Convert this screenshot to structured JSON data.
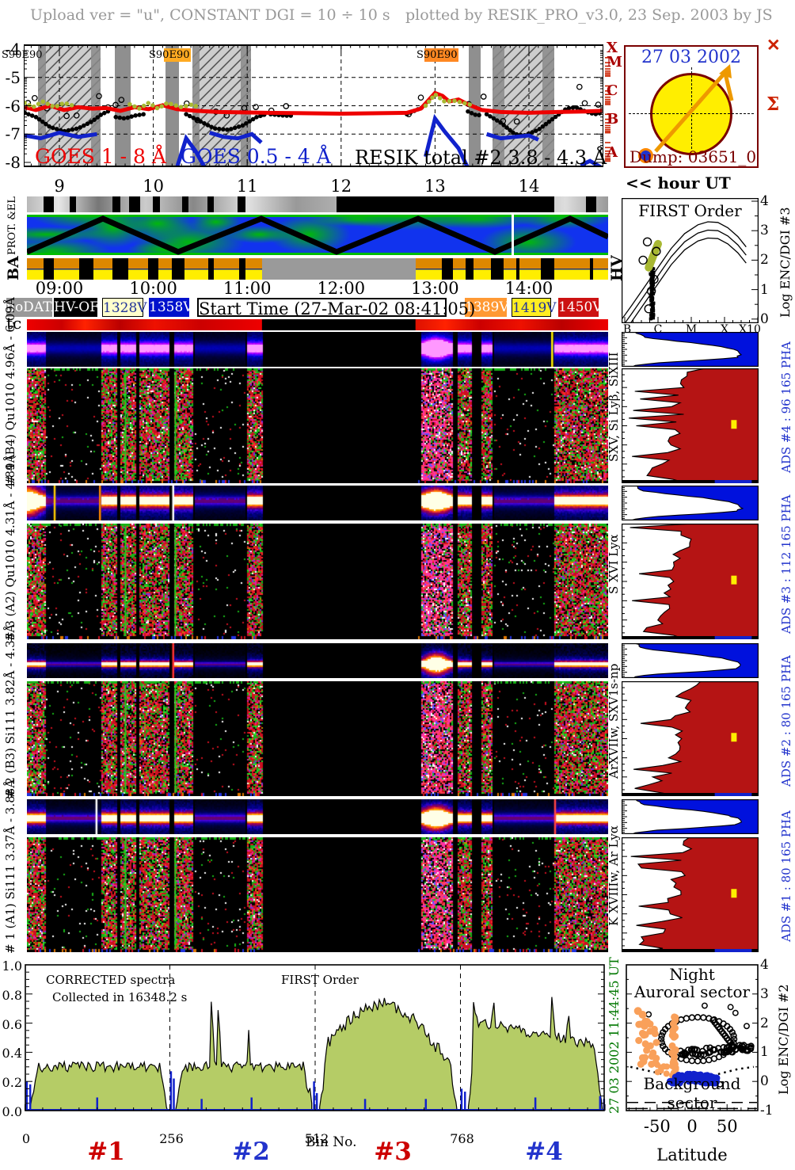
{
  "header": {
    "left": "Upload ver = \"u\", CONSTANT  DGI =  10 ÷  10 s",
    "right": "plotted by RESIK_PRO_v3.0, 23 Sep. 2003 by JS"
  },
  "sun_panel": {
    "date": "27 03 2002",
    "dump": "Dump: 03651_0"
  },
  "hour_note": "<< hour UT",
  "decor": {
    "cross": "✕",
    "sigma": "Σ"
  },
  "goes": {
    "yticks": [
      "-4",
      "-5",
      "-6",
      "-7",
      "-8"
    ],
    "xticks": [
      "9",
      "10",
      "11",
      "12",
      "13",
      "14"
    ],
    "class_letters": [
      "X",
      "M",
      "C",
      "B",
      "A"
    ],
    "s90_labels": [
      "S90E90",
      "S90E90",
      "S90E90"
    ],
    "legend": [
      "GOES 1 - 8 Å",
      "GOES 0.5 - 4 Å",
      "RESIK total #2  3.8 - 4.3 Å"
    ],
    "legend_colors": [
      "#ee0000",
      "#1122cc",
      "#000000"
    ]
  },
  "strips": {
    "prot_label": "PROT. &EL",
    "ba_label": "BA",
    "hv_label": "HV",
    "tc_label": "tc",
    "times": [
      "09:00",
      "10:00",
      "11:00",
      "12:00",
      "13:00",
      "14:00"
    ],
    "volt_legend": [
      {
        "label": "noDATA",
        "bg": "#999999",
        "fg": "#ffffff"
      },
      {
        "label": "HV-OFF",
        "bg": "#000000",
        "fg": "#ffffff"
      },
      {
        "label": "1328V",
        "bg": "#ffffcc",
        "fg": "#223399"
      },
      {
        "label": "1358V",
        "bg": "#0011cc",
        "fg": "#ffffff"
      },
      {
        "label": "1389V",
        "bg": "#ff9933",
        "fg": "#ffffff"
      },
      {
        "label": "1419V",
        "bg": "#ffee22",
        "fg": "#223399"
      },
      {
        "label": "1450V",
        "bg": "#cc1111",
        "fg": "#ffffff"
      }
    ],
    "start_time": "Start Time (27-Mar-02 08:41:05)"
  },
  "panels": [
    {
      "id": "4",
      "left_label": "# 4 (B4) Qu1010 4.96Å - 6.09Å",
      "line_label": "SXV, Si Lyβ, SiXIII",
      "ads_label": "ADS #4 :  96 165 PHA"
    },
    {
      "id": "3",
      "left_label": "# 3 (A2) Qu1010 4.31Å - 4.89Å",
      "line_label": "S XVI Lyα",
      "ads_label": "ADS #3 :  112 165 PHA"
    },
    {
      "id": "2",
      "left_label": "# 2 (B3) Si111  3.82Å - 4.33Å",
      "line_label": "ArXVIIw, SXV1s-np",
      "ads_label": "ADS #2 :  80 165 PHA"
    },
    {
      "id": "1",
      "left_label": "# 1 (A1) Si111  3.37Å - 3.88Å",
      "line_label": "K XVIIIw, Ar Lyα",
      "ads_label": "ADS #1 :  80 165 PHA"
    }
  ],
  "first_order": {
    "title": "FIRST Order",
    "xticks": [
      "B",
      "C",
      "M",
      "X",
      "X10"
    ],
    "yticks": [
      "4",
      "3",
      "2",
      "1",
      "0"
    ],
    "ylabel": "Log ENC/DGI #3"
  },
  "spectra": {
    "title": "CORRECTED spectra",
    "subtitle": "Collected in 16348.2 s",
    "order_note": "FIRST Order",
    "xlabel": "Bin No.",
    "xticks": [
      "0",
      "256",
      "512",
      "768"
    ],
    "yticks": [
      "1.0",
      "0.8",
      "0.6",
      "0.4",
      "0.2",
      "0.0"
    ],
    "segment_labels": [
      "#1",
      "#2",
      "#3",
      "#4"
    ],
    "segment_colors": [
      "#cc0000",
      "#2233cc",
      "#cc0000",
      "#2233cc"
    ],
    "side_date": "27 03 2002      11:44:45 UT"
  },
  "latitude_plot": {
    "label_night": "Night",
    "label_auroral": "Auroral sector",
    "label_background": "Background sector",
    "xlabel": "Latitude",
    "xticks": [
      "-50",
      "0",
      "50"
    ],
    "yticks": [
      "4",
      "3",
      "2",
      "1",
      "0",
      "-1"
    ],
    "ylabel": "Log ENC/DGI #2"
  },
  "chart_data": {
    "goes": {
      "type": "line",
      "xlabel_hours": [
        9,
        10,
        11,
        12,
        13,
        14
      ],
      "ylim": [
        -8,
        -4
      ],
      "night_bands": [
        [
          48,
          127,
          "hatch"
        ],
        [
          145,
          165,
          "solid"
        ],
        [
          209,
          226,
          "solid"
        ],
        [
          243,
          317,
          "hatch"
        ],
        [
          592,
          607,
          "solid"
        ],
        [
          622,
          700,
          "hatch"
        ]
      ],
      "hatch_edges": [
        [
          48,
          58
        ],
        [
          115,
          127
        ],
        [
          243,
          252
        ],
        [
          304,
          317
        ],
        [
          622,
          637
        ],
        [
          685,
          700
        ]
      ],
      "red_series": [
        [
          8.63,
          -6.05
        ],
        [
          8.75,
          -6.15
        ],
        [
          8.9,
          -6.0
        ],
        [
          9.05,
          -6.15
        ],
        [
          9.2,
          -6.05
        ],
        [
          9.35,
          -6.1
        ],
        [
          9.5,
          -6.08
        ],
        [
          9.65,
          -6.18
        ],
        [
          9.8,
          -6.05
        ],
        [
          9.95,
          -6.12
        ],
        [
          10.1,
          -5.98
        ],
        [
          10.25,
          -6.12
        ],
        [
          10.45,
          -6.18
        ],
        [
          10.7,
          -6.22
        ],
        [
          11.2,
          -6.25
        ],
        [
          12.0,
          -6.28
        ],
        [
          12.7,
          -6.25
        ],
        [
          12.85,
          -6.1
        ],
        [
          13.0,
          -5.55
        ],
        [
          13.08,
          -5.65
        ],
        [
          13.15,
          -5.85
        ],
        [
          13.25,
          -5.78
        ],
        [
          13.35,
          -5.95
        ],
        [
          13.5,
          -6.15
        ],
        [
          13.7,
          -6.22
        ],
        [
          14.0,
          -6.25
        ],
        [
          14.3,
          -6.22
        ],
        [
          14.6,
          -6.2
        ],
        [
          14.78,
          -6.18
        ]
      ],
      "olive_series": [
        [
          [
            8.63,
            -5.9
          ],
          [
            8.72,
            -6.05
          ],
          [
            8.82,
            -5.85
          ],
          [
            8.95,
            -6.05
          ],
          [
            9.05,
            -5.9
          ],
          [
            9.15,
            -6.0
          ]
        ],
        [
          [
            9.75,
            -5.95
          ],
          [
            9.85,
            -6.1
          ],
          [
            9.95,
            -5.9
          ],
          [
            10.05,
            -6.1
          ],
          [
            10.15,
            -5.9
          ],
          [
            10.3,
            -6.05
          ],
          [
            10.42,
            -5.95
          ],
          [
            10.5,
            -6.1
          ]
        ],
        [
          [
            12.9,
            -6.0
          ],
          [
            13.0,
            -5.6
          ],
          [
            13.1,
            -5.85
          ],
          [
            13.2,
            -5.82
          ],
          [
            13.3,
            -5.9
          ],
          [
            13.42,
            -6.0
          ]
        ]
      ],
      "blue_series": [
        [
          [
            8.63,
            -7.05
          ],
          [
            8.8,
            -7.15
          ],
          [
            9.0,
            -6.95
          ],
          [
            9.2,
            -7.1
          ],
          [
            9.4,
            -7.0
          ]
        ],
        [
          [
            10.25,
            -8.2
          ],
          [
            10.35,
            -7.15
          ],
          [
            10.45,
            -7.6
          ],
          [
            10.55,
            -8.2
          ]
        ],
        [
          [
            10.6,
            -6.95
          ],
          [
            10.75,
            -7.1
          ],
          [
            10.9,
            -7.15
          ],
          [
            11.05,
            -7.0
          ],
          [
            11.15,
            -7.3
          ]
        ],
        [
          [
            12.9,
            -7.8
          ],
          [
            13.0,
            -6.45
          ],
          [
            13.1,
            -6.9
          ],
          [
            13.25,
            -7.5
          ],
          [
            13.35,
            -8.2
          ]
        ],
        [
          [
            13.55,
            -7.0
          ],
          [
            13.7,
            -7.15
          ],
          [
            13.85,
            -7.1
          ],
          [
            14.0,
            -7.05
          ],
          [
            14.1,
            -7.2
          ]
        ],
        [
          [
            14.55,
            -8.1
          ],
          [
            14.65,
            -7.95
          ],
          [
            14.78,
            -8.2
          ]
        ]
      ],
      "black_series": [
        [
          [
            8.63,
            -6.25
          ],
          [
            8.75,
            -6.4
          ],
          [
            8.9,
            -6.75
          ],
          [
            9.05,
            -6.9
          ],
          [
            9.2,
            -6.8
          ],
          [
            9.35,
            -6.55
          ],
          [
            9.45,
            -6.3
          ],
          [
            9.55,
            -6.15
          ]
        ],
        [
          [
            9.6,
            -6.4
          ],
          [
            9.7,
            -6.45
          ],
          [
            9.8,
            -6.35
          ],
          [
            9.9,
            -6.3
          ]
        ],
        [
          [
            10.35,
            -6.3
          ],
          [
            10.5,
            -6.55
          ],
          [
            10.65,
            -6.8
          ],
          [
            10.8,
            -6.85
          ],
          [
            10.95,
            -6.7
          ],
          [
            11.1,
            -6.4
          ],
          [
            11.2,
            -6.3
          ]
        ],
        [
          [
            11.25,
            -6.3
          ],
          [
            11.4,
            -6.35
          ],
          [
            11.5,
            -6.35
          ]
        ],
        [
          [
            12.7,
            -6.3
          ],
          [
            12.8,
            -6.15
          ],
          [
            12.87,
            -6.05
          ]
        ],
        [
          [
            13.35,
            -6.2
          ],
          [
            13.45,
            -6.35
          ],
          [
            13.5,
            -6.3
          ]
        ],
        [
          [
            13.55,
            -6.3
          ],
          [
            13.7,
            -6.6
          ],
          [
            13.85,
            -7.0
          ],
          [
            13.95,
            -7.05
          ],
          [
            14.1,
            -6.85
          ],
          [
            14.2,
            -6.6
          ],
          [
            14.3,
            -6.35
          ],
          [
            14.4,
            -6.1
          ],
          [
            14.5,
            -6.05
          ],
          [
            14.6,
            -6.2
          ],
          [
            14.7,
            -6.3
          ],
          [
            14.78,
            -6.25
          ]
        ]
      ]
    },
    "first_order": {
      "type": "scatter",
      "curve": [
        [
          -7.15,
          -0.1
        ],
        [
          -6.8,
          0.45
        ],
        [
          -6.4,
          1.1
        ],
        [
          -6.0,
          1.75
        ],
        [
          -5.6,
          2.4
        ],
        [
          -5.2,
          2.9
        ],
        [
          -4.8,
          3.2
        ],
        [
          -4.5,
          3.3
        ],
        [
          -4.2,
          3.28
        ],
        [
          -3.9,
          3.1
        ],
        [
          -3.6,
          2.8
        ],
        [
          -3.35,
          2.45
        ]
      ],
      "curve_offsets": [
        0,
        -0.28,
        -0.55
      ],
      "cluster": {
        "x": -6.18,
        "sx": 0.05,
        "y0": 0.0,
        "y1": 1.85,
        "n": 90
      },
      "olive_seg": [
        [
          -6.28,
          1.75
        ],
        [
          -6.0,
          2.55
        ]
      ],
      "circles": [
        [
          -6.32,
          2.62
        ],
        [
          -6.12,
          1.35
        ],
        [
          -6.2,
          0.95
        ],
        [
          -6.28,
          0.35
        ],
        [
          -6.05,
          2.3
        ],
        [
          -6.45,
          2.0
        ]
      ]
    },
    "pha_histograms": {
      "type": "table",
      "counts": [
        {
          "ads": 4,
          "pha_count": "96 165"
        },
        {
          "ads": 3,
          "pha_count": "112 165"
        },
        {
          "ads": 2,
          "pha_count": "80 165"
        },
        {
          "ads": 1,
          "pha_count": "80 165"
        }
      ],
      "blue_profile": [
        [
          0,
          0.1
        ],
        [
          0.08,
          0.13
        ],
        [
          0.16,
          0.17
        ],
        [
          0.26,
          0.38
        ],
        [
          0.36,
          0.62
        ],
        [
          0.46,
          0.78
        ],
        [
          0.56,
          0.86
        ],
        [
          0.66,
          0.87
        ],
        [
          0.74,
          0.83
        ],
        [
          0.82,
          0.55
        ],
        [
          0.88,
          0.28
        ],
        [
          0.94,
          0.13
        ],
        [
          1,
          0.08
        ]
      ],
      "red_profile": [
        [
          0,
          0.55
        ],
        [
          0.08,
          0.46
        ],
        [
          0.16,
          0.44
        ],
        [
          0.24,
          0.46
        ],
        [
          0.32,
          0.4
        ],
        [
          0.4,
          0.42
        ],
        [
          0.48,
          0.38
        ],
        [
          0.56,
          0.4
        ],
        [
          0.62,
          0.36
        ],
        [
          0.7,
          0.38
        ],
        [
          0.78,
          0.32
        ],
        [
          0.86,
          0.26
        ],
        [
          0.93,
          0.2
        ],
        [
          1,
          0.45
        ]
      ]
    },
    "corrected_spectra": {
      "type": "area",
      "xlim": [
        0,
        1024
      ],
      "ylim": [
        0,
        1
      ],
      "segments": [
        {
          "x0": 10,
          "x1": 252,
          "base": 0.3,
          "dome": false,
          "decl": 0,
          "spikes": []
        },
        {
          "x0": 266,
          "x1": 506,
          "base": 0.3,
          "dome": false,
          "decl": 0,
          "spikes": [
            [
              330,
              0.85
            ],
            [
              342,
              0.8
            ],
            [
              395,
              0.54
            ],
            [
              504,
              0.4
            ]
          ]
        },
        {
          "x0": 520,
          "x1": 762,
          "base": 0.57,
          "dome": true,
          "decl": 0,
          "spikes": []
        },
        {
          "x0": 782,
          "x1": 1018,
          "base": 0.52,
          "dome": false,
          "decl": 0.18,
          "spikes": [
            [
              792,
              0.93
            ],
            [
              826,
              0.75
            ],
            [
              930,
              0.88
            ],
            [
              958,
              0.72
            ]
          ]
        }
      ],
      "blue_spikes": [
        [
          4,
          0.2
        ],
        [
          10,
          0.18
        ],
        [
          128,
          0.09
        ],
        [
          258,
          0.27
        ],
        [
          263,
          0.22
        ],
        [
          312,
          0.08
        ],
        [
          400,
          0.09
        ],
        [
          510,
          0.2
        ],
        [
          515,
          0.12
        ],
        [
          600,
          0.08
        ],
        [
          707,
          0.08
        ],
        [
          770,
          0.15
        ],
        [
          776,
          0.13
        ],
        [
          900,
          0.09
        ],
        [
          1014,
          0.1
        ],
        [
          1021,
          0.08
        ]
      ]
    },
    "latitude_scatter": {
      "type": "scatter",
      "xlim": [
        -95,
        95
      ],
      "ylim": [
        -1,
        4
      ],
      "orange_clusters": [
        {
          "cx": -63,
          "cy": 1.3,
          "sx": 7,
          "sy": 0.75,
          "n": 26,
          "r": 4.5
        },
        {
          "cx": -26,
          "cy": 1.2,
          "sx": 1.5,
          "sy": 1.05,
          "n": 26,
          "r": 4.5
        },
        {
          "cx": -40,
          "cy": 0.45,
          "sx": 5,
          "sy": 0.2,
          "n": 7,
          "r": 4
        },
        {
          "cx": -70,
          "cy": 2.2,
          "sx": 4,
          "sy": 0.3,
          "n": 5,
          "r": 5
        }
      ],
      "black_ring": {
        "cx": 8,
        "cy": 1.45,
        "rx": 26,
        "ry": 0.75,
        "n": 40
      },
      "black_band": {
        "x0": -18,
        "x1": 88,
        "y": 1.0,
        "n": 70,
        "jit": 0.12
      },
      "black_arc": [
        [
          30,
          2.1
        ],
        [
          62,
          1.1
        ]
      ],
      "black_extra": [
        [
          55,
          2.55
        ],
        [
          62,
          2.35
        ],
        [
          78,
          1.9
        ],
        [
          -62,
          2.3
        ],
        [
          40,
          -0.1
        ],
        [
          18,
          2.6
        ]
      ],
      "blue_cluster": {
        "cx": 2,
        "cy": 0.12,
        "sx": 14,
        "sy": 0.14,
        "n": 85,
        "r": 4.5
      },
      "dotted_line": [
        [
          -88,
          0.5
        ],
        [
          -60,
          0.35
        ],
        [
          -35,
          0.22
        ],
        [
          -15,
          0.15
        ],
        [
          5,
          0.13
        ],
        [
          25,
          0.18
        ],
        [
          45,
          0.3
        ],
        [
          65,
          0.42
        ],
        [
          88,
          0.5
        ]
      ]
    }
  }
}
